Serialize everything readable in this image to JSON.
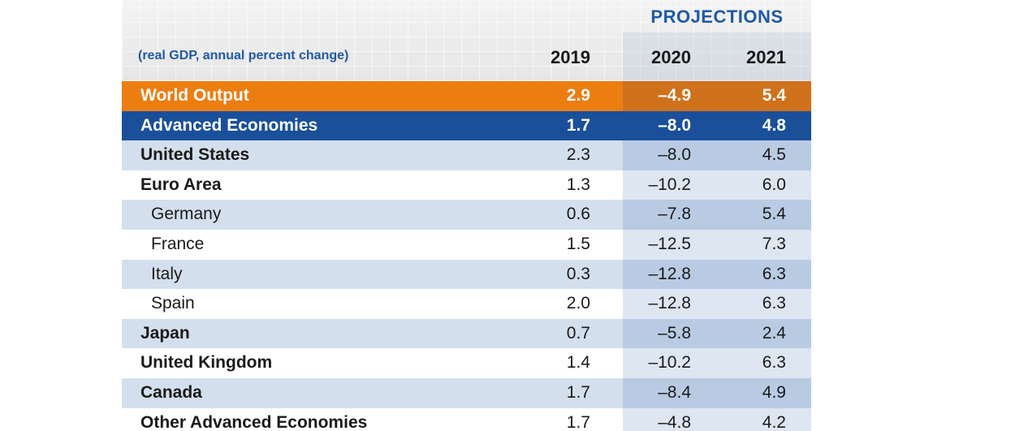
{
  "header": {
    "projections_label": "PROJECTIONS",
    "units": "(real GDP, annual percent change)",
    "years": [
      "2019",
      "2020",
      "2021"
    ]
  },
  "rows": [
    {
      "label": "World Output",
      "v2019": "2.9",
      "v2020": "–4.9",
      "v2021": "5.4"
    },
    {
      "label": "Advanced Economies",
      "v2019": "1.7",
      "v2020": "–8.0",
      "v2021": "4.8"
    },
    {
      "label": "United States",
      "v2019": "2.3",
      "v2020": "–8.0",
      "v2021": "4.5"
    },
    {
      "label": "Euro Area",
      "v2019": "1.3",
      "v2020": "–10.2",
      "v2021": "6.0"
    },
    {
      "label": "Germany",
      "v2019": "0.6",
      "v2020": "–7.8",
      "v2021": "5.4"
    },
    {
      "label": "France",
      "v2019": "1.5",
      "v2020": "–12.5",
      "v2021": "7.3"
    },
    {
      "label": "Italy",
      "v2019": "0.3",
      "v2020": "–12.8",
      "v2021": "6.3"
    },
    {
      "label": "Spain",
      "v2019": "2.0",
      "v2020": "–12.8",
      "v2021": "6.3"
    },
    {
      "label": "Japan",
      "v2019": "0.7",
      "v2020": "–5.8",
      "v2021": "2.4"
    },
    {
      "label": "United Kingdom",
      "v2019": "1.4",
      "v2020": "–10.2",
      "v2021": "6.3"
    },
    {
      "label": "Canada",
      "v2019": "1.7",
      "v2020": "–8.4",
      "v2021": "4.9"
    },
    {
      "label": "Other Advanced Economies",
      "v2019": "1.7",
      "v2020": "–4.8",
      "v2021": "4.2"
    }
  ],
  "colors": {
    "orange": "#ec7d11",
    "blue": "#1a4f9a",
    "title_blue": "#1f5aa6"
  }
}
